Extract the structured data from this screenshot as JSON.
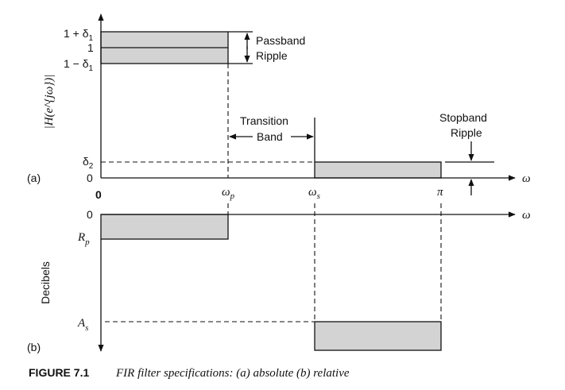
{
  "panel_a": {
    "tag": "(a)",
    "ylabel": "|H(e^{jω})|",
    "y_ticks": {
      "one_plus": "1 + δ",
      "one": "1",
      "one_minus": "1 − δ",
      "delta2": "δ",
      "zero": "0",
      "sub1": "1",
      "sub2": "2"
    },
    "x_ticks": {
      "origin": "0",
      "wp": "ω",
      "wp_sub": "p",
      "ws": "ω",
      "ws_sub": "s",
      "pi": "π"
    },
    "x_axis_label": "ω",
    "annotations": {
      "passband_line1": "Passband",
      "passband_line2": "Ripple",
      "transition_line1": "Transition",
      "transition_line2": "Band",
      "stopband_line1": "Stopband",
      "stopband_line2": "Ripple"
    }
  },
  "panel_b": {
    "tag": "(b)",
    "ylabel": "Decibels",
    "y_ticks": {
      "zero": "0",
      "rp": "R",
      "rp_sub": "p",
      "as": "A",
      "as_sub": "s"
    },
    "x_axis_label": "ω"
  },
  "caption": {
    "label": "FIGURE 7.1",
    "text": "FIR filter specifications: (a) absolute (b) relative"
  }
}
